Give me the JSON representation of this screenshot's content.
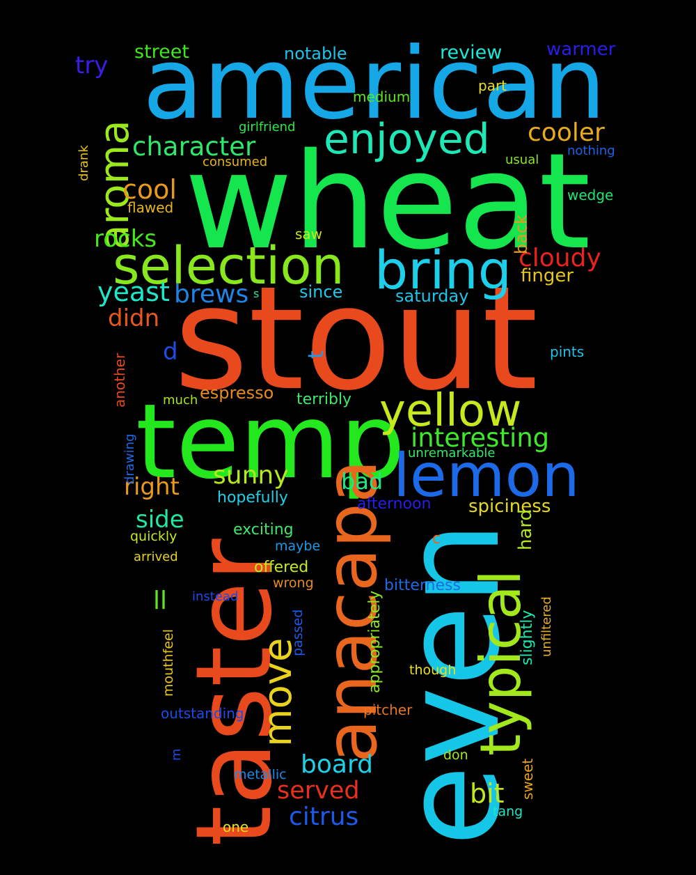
{
  "background": "#000000",
  "words": [
    {
      "text": "stout",
      "color": "#e8491d"
    },
    {
      "text": "wheat",
      "color": "#16e64e"
    },
    {
      "text": "american",
      "color": "#16a8e6"
    },
    {
      "text": "even",
      "color": "#16c6e6"
    },
    {
      "text": "taster",
      "color": "#e8491d"
    },
    {
      "text": "temp",
      "color": "#22e81d"
    },
    {
      "text": "anacapa",
      "color": "#e8661d"
    },
    {
      "text": "lemon",
      "color": "#1d6ae8"
    },
    {
      "text": "typical",
      "color": "#a3e81d"
    },
    {
      "text": "selection",
      "color": "#88e81d"
    },
    {
      "text": "bring",
      "color": "#1dcfe8"
    },
    {
      "text": "yellow",
      "color": "#c7e81d"
    },
    {
      "text": "aroma",
      "color": "#9ae81d"
    },
    {
      "text": "enjoyed",
      "color": "#1de8b8"
    },
    {
      "text": "move",
      "color": "#e8d21d"
    },
    {
      "text": "character",
      "color": "#2ee86a"
    },
    {
      "text": "cooler",
      "color": "#e8ab1d"
    },
    {
      "text": "interesting",
      "color": "#3ee82a"
    },
    {
      "text": "cool",
      "color": "#e89a1d"
    },
    {
      "text": "yeast",
      "color": "#1de8c9"
    },
    {
      "text": "brews",
      "color": "#1d85e8"
    },
    {
      "text": "cloudy",
      "color": "#e8231d"
    },
    {
      "text": "board",
      "color": "#1dd1e8"
    },
    {
      "text": "citrus",
      "color": "#1d5ae8"
    },
    {
      "text": "served",
      "color": "#e8301d"
    },
    {
      "text": "bit",
      "color": "#c0e81d"
    },
    {
      "text": "sunny",
      "color": "#b5e81d"
    },
    {
      "text": "didn",
      "color": "#e8571d"
    },
    {
      "text": "right",
      "color": "#e89a1d"
    },
    {
      "text": "side",
      "color": "#1de8a4"
    },
    {
      "text": "rocks",
      "color": "#46e81d"
    },
    {
      "text": "bad",
      "color": "#1de884"
    },
    {
      "text": "ll",
      "color": "#5ae81d"
    },
    {
      "text": "d",
      "color": "#1d4ce8"
    },
    {
      "text": "try",
      "color": "#3a1de8"
    },
    {
      "text": "spiciness",
      "color": "#e8d81d"
    },
    {
      "text": "hard",
      "color": "#b5e81d"
    },
    {
      "text": "saturday",
      "color": "#1dc5e8"
    },
    {
      "text": "finger",
      "color": "#e8c41d"
    },
    {
      "text": "back",
      "color": "#e89a1d"
    },
    {
      "text": "street",
      "color": "#3ee81d"
    },
    {
      "text": "review",
      "color": "#1de8d8"
    },
    {
      "text": "warmer",
      "color": "#2a1de8"
    },
    {
      "text": "notable",
      "color": "#1dc4e8"
    },
    {
      "text": "espresso",
      "color": "#e88c1d"
    },
    {
      "text": "since",
      "color": "#1dc9e8"
    },
    {
      "text": "slightly",
      "color": "#1de8b0"
    },
    {
      "text": "appropriately",
      "color": "#8ae81d"
    },
    {
      "text": "t",
      "color": "#1d9ae8"
    },
    {
      "text": "hopefully",
      "color": "#1dd1e8"
    },
    {
      "text": "afternoon",
      "color": "#2a1de8"
    },
    {
      "text": "exciting",
      "color": "#3ee86a"
    },
    {
      "text": "bitterness",
      "color": "#1d6ae8"
    },
    {
      "text": "offered",
      "color": "#c7e81d"
    },
    {
      "text": "terribly",
      "color": "#3ee86a"
    },
    {
      "text": "pitcher",
      "color": "#e8761d"
    },
    {
      "text": "outstanding",
      "color": "#1d4ce8"
    },
    {
      "text": "sweet",
      "color": "#e8a21d"
    },
    {
      "text": "flawed",
      "color": "#e8b61d"
    },
    {
      "text": "medium",
      "color": "#5ae81d"
    },
    {
      "text": "part",
      "color": "#e8e21d"
    },
    {
      "text": "girlfriend",
      "color": "#2ee84a"
    },
    {
      "text": "consumed",
      "color": "#e8b21d"
    },
    {
      "text": "usual",
      "color": "#8ae81d"
    },
    {
      "text": "nothing",
      "color": "#1d62e8"
    },
    {
      "text": "wedge",
      "color": "#1de874"
    },
    {
      "text": "saw",
      "color": "#c7e81d"
    },
    {
      "text": "s",
      "color": "#1de8a4"
    },
    {
      "text": "pints",
      "color": "#1dc4e8"
    },
    {
      "text": "another",
      "color": "#e8491d"
    },
    {
      "text": "drank",
      "color": "#e8c41d"
    },
    {
      "text": "drawing",
      "color": "#1d6ae8"
    },
    {
      "text": "much",
      "color": "#a3e81d"
    },
    {
      "text": "unremarkable",
      "color": "#2ee86a"
    },
    {
      "text": "quickly",
      "color": "#c7e81d"
    },
    {
      "text": "arrived",
      "color": "#e8d21d"
    },
    {
      "text": "maybe",
      "color": "#1d9ae8"
    },
    {
      "text": "wrong",
      "color": "#e88c1d"
    },
    {
      "text": "instead",
      "color": "#1d4ce8"
    },
    {
      "text": "c",
      "color": "#e8661d"
    },
    {
      "text": "mouthfeel",
      "color": "#e8c41d"
    },
    {
      "text": "passed",
      "color": "#1d5ae8"
    },
    {
      "text": "unfiltered",
      "color": "#e8b21d"
    },
    {
      "text": "though",
      "color": "#e8e21d"
    },
    {
      "text": "m",
      "color": "#1d4ce8"
    },
    {
      "text": "don",
      "color": "#a3e81d"
    },
    {
      "text": "metallic",
      "color": "#1d8ae8"
    },
    {
      "text": "one",
      "color": "#e8e21d"
    },
    {
      "text": "tang",
      "color": "#1de8c4"
    }
  ]
}
